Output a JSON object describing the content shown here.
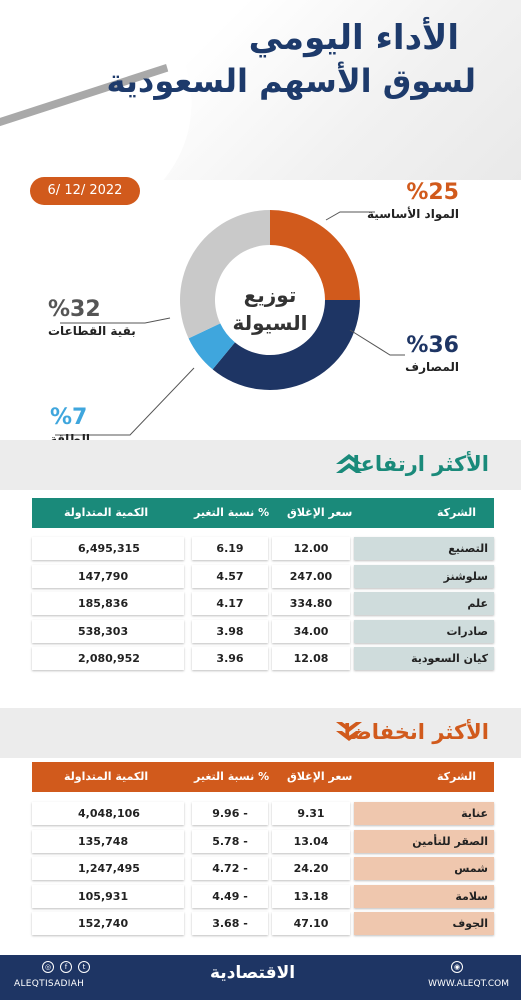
{
  "header": {
    "title_line1": "الأداء اليومي",
    "title_line2": "لسوق الأسهم السعودية",
    "date": "6/ 12/ 2022"
  },
  "chart_data": {
    "type": "pie",
    "title": "توزيع السيولة",
    "title_line1": "توزيع",
    "title_line2": "السيولة",
    "slices": [
      {
        "name": "المواد الأساسية",
        "pct_label": "%25",
        "value": 25,
        "color": "#d15a1c"
      },
      {
        "name": "المصارف",
        "pct_label": "%36",
        "value": 36,
        "color": "#1e3564"
      },
      {
        "name": "الطاقة",
        "pct_label": "%7",
        "value": 7,
        "color": "#3fa6dd"
      },
      {
        "name": "بقية القطاعات",
        "pct_label": "%32",
        "value": 32,
        "color": "#c9c9c9"
      }
    ]
  },
  "gainers": {
    "title": "الأكثر ارتفاعا",
    "header_color": "#1a8a7a",
    "name_cell_color": "#cfdcdc",
    "columns": {
      "name": "الشركة",
      "close": "سعر الإغلاق",
      "change": "نسبة التغير %",
      "volume": "الكمية المتداولة"
    },
    "rows": [
      {
        "name": "التصنيع",
        "close": "12.00",
        "change": "6.19",
        "volume": "6,495,315"
      },
      {
        "name": "سلوشنز",
        "close": "247.00",
        "change": "4.57",
        "volume": "147,790"
      },
      {
        "name": "علم",
        "close": "334.80",
        "change": "4.17",
        "volume": "185,836"
      },
      {
        "name": "صادرات",
        "close": "34.00",
        "change": "3.98",
        "volume": "538,303"
      },
      {
        "name": "كيان السعودية",
        "close": "12.08",
        "change": "3.96",
        "volume": "2,080,952"
      }
    ]
  },
  "losers": {
    "title": "الأكثر انخفاضا",
    "header_color": "#d15a1c",
    "name_cell_color": "#efc7ae",
    "columns": {
      "name": "الشركة",
      "close": "سعر الإغلاق",
      "change": "نسبة التغير %",
      "volume": "الكمية المتداولة"
    },
    "rows": [
      {
        "name": "عناية",
        "close": "9.31",
        "change": "9.96 -",
        "volume": "4,048,106"
      },
      {
        "name": "الصقر للتأمين",
        "close": "13.04",
        "change": "5.78 -",
        "volume": "135,748"
      },
      {
        "name": "شمس",
        "close": "24.20",
        "change": "4.72 -",
        "volume": "1,247,495"
      },
      {
        "name": "سلامة",
        "close": "13.18",
        "change": "4.49 -",
        "volume": "105,931"
      },
      {
        "name": "الجوف",
        "close": "47.10",
        "change": "3.68 -",
        "volume": "152,740"
      }
    ]
  },
  "footer": {
    "handle": "ALEQTISADIAH",
    "logo": "الاقتصادية",
    "site": "WWW.ALEQT.COM"
  }
}
